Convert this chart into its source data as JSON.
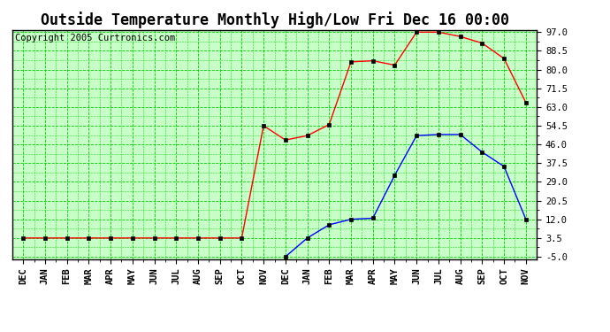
{
  "title": "Outside Temperature Monthly High/Low Fri Dec 16 00:00",
  "copyright": "Copyright 2005 Curtronics.com",
  "x_labels": [
    "DEC",
    "JAN",
    "FEB",
    "MAR",
    "APR",
    "MAY",
    "JUN",
    "JUL",
    "AUG",
    "SEP",
    "OCT",
    "NOV",
    "DEC",
    "JAN",
    "FEB",
    "MAR",
    "APR",
    "MAY",
    "JUN",
    "JUL",
    "AUG",
    "SEP",
    "OCT",
    "NOV"
  ],
  "high_values": [
    3.5,
    3.5,
    3.5,
    3.5,
    3.5,
    3.5,
    3.5,
    3.5,
    3.5,
    3.5,
    3.5,
    54.5,
    48.0,
    50.0,
    55.0,
    83.5,
    84.0,
    82.0,
    97.0,
    97.0,
    95.0,
    92.0,
    85.0,
    65.0
  ],
  "low_values": [
    null,
    null,
    null,
    null,
    null,
    null,
    null,
    null,
    null,
    null,
    null,
    null,
    -5.0,
    3.5,
    9.5,
    12.0,
    12.5,
    32.0,
    50.0,
    50.5,
    50.5,
    42.5,
    36.0,
    12.0
  ],
  "ylim": [
    -5.0,
    97.0
  ],
  "yticks": [
    97.0,
    88.5,
    80.0,
    71.5,
    63.0,
    54.5,
    46.0,
    37.5,
    29.0,
    20.5,
    12.0,
    3.5,
    -5.0
  ],
  "fig_bg_color": "#ffffff",
  "plot_bg": "#c8ffc8",
  "line_color_high": "red",
  "line_color_low": "blue",
  "grid_color": "#00cc00",
  "title_fontsize": 12,
  "copyright_fontsize": 7.5
}
